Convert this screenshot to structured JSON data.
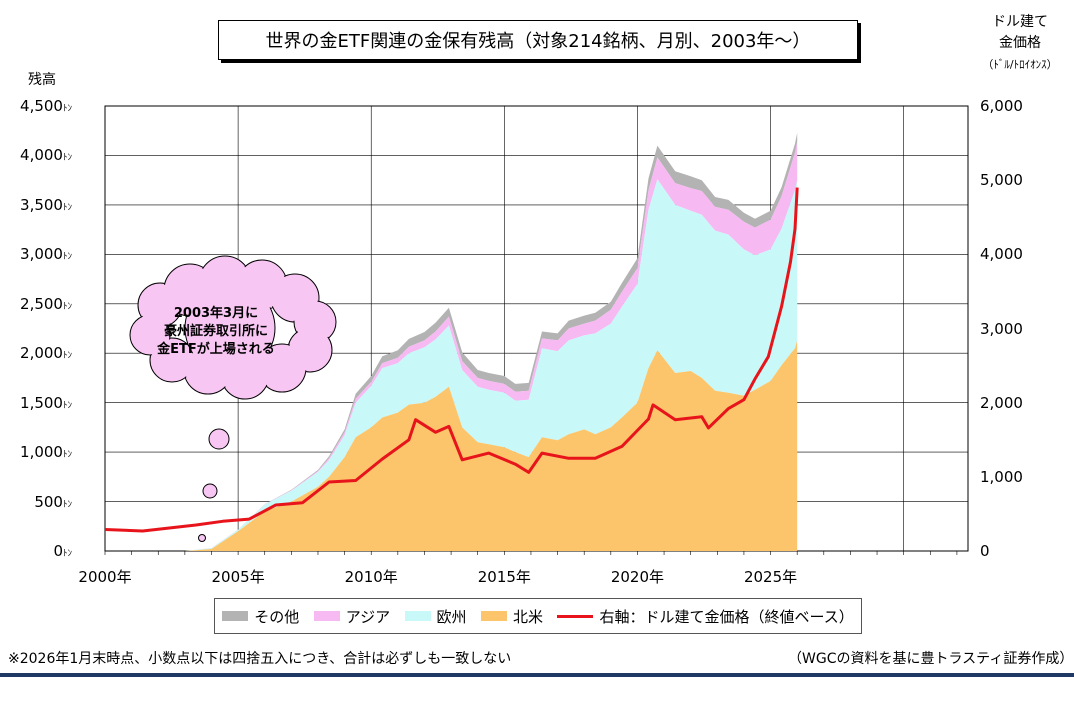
{
  "title": "世界の金ETF関連の金保有残高（対象214銘柄、月別、2003年～）",
  "left_axis": {
    "title": "残高",
    "unit": "ﾄﾝ",
    "ticks": [
      "0",
      "500",
      "1,000",
      "1,500",
      "2,000",
      "2,500",
      "3,000",
      "3,500",
      "4,000",
      "4,500"
    ]
  },
  "right_axis": {
    "title_line1": "ドル建て",
    "title_line2": "金価格",
    "unit": "（ﾄﾞﾙ/ﾄﾛｲｵﾝｽ）",
    "ticks": [
      "0",
      "1,000",
      "2,000",
      "3,000",
      "4,000",
      "5,000",
      "6,000"
    ]
  },
  "x_axis": {
    "ticks": [
      "2000年",
      "2005年",
      "2010年",
      "2015年",
      "2020年",
      "2025年"
    ]
  },
  "callout": {
    "line1": "2003年3月に",
    "line2": "豪州証券取引所に",
    "line3": "金ETFが上場される"
  },
  "legend": {
    "other": "その他",
    "asia": "アジア",
    "europe": "欧州",
    "north_america": "北米",
    "gold_price": "右軸：ドル建て金価格（終値ベース）"
  },
  "footnote": "※2026年1月末時点、小数点以下は四捨五入につき、合計は必ずしも一致しない",
  "source": "（WGCの資料を基に豊トラスティ証券作成）",
  "colors": {
    "other": "#b3b3b3",
    "asia": "#f7b9f2",
    "europe": "#c9f8f8",
    "north_america": "#fcc56b",
    "gold_price": "#e8141b",
    "grid": "#000000"
  },
  "chart_data": {
    "type": "area",
    "stacked": true,
    "x": [
      "2003-01",
      "2004-01",
      "2005-01",
      "2006-01",
      "2007-01",
      "2008-01",
      "2008-06",
      "2009-01",
      "2009-06",
      "2010-01",
      "2010-06",
      "2011-01",
      "2011-06",
      "2012-01",
      "2012-06",
      "2012-12",
      "2013-06",
      "2014-01",
      "2014-06",
      "2015-01",
      "2015-06",
      "2015-12",
      "2016-06",
      "2017-01",
      "2017-06",
      "2018-01",
      "2018-06",
      "2019-01",
      "2019-06",
      "2020-01",
      "2020-06",
      "2020-10",
      "2021-06",
      "2022-01",
      "2022-06",
      "2022-12",
      "2023-06",
      "2024-01",
      "2024-06",
      "2025-01",
      "2025-06",
      "2025-12",
      "2026-01"
    ],
    "series": [
      {
        "name": "北米",
        "values": [
          0,
          20,
          200,
          400,
          500,
          650,
          750,
          950,
          1150,
          1250,
          1350,
          1400,
          1480,
          1500,
          1560,
          1660,
          1250,
          1100,
          1080,
          1050,
          1000,
          950,
          1150,
          1120,
          1180,
          1230,
          1180,
          1250,
          1350,
          1500,
          1850,
          2030,
          1800,
          1820,
          1750,
          1620,
          1600,
          1570,
          1630,
          1720,
          1880,
          2050,
          2130
        ]
      },
      {
        "name": "欧州",
        "values": [
          0,
          8,
          15,
          70,
          110,
          150,
          170,
          220,
          350,
          420,
          500,
          500,
          520,
          560,
          580,
          620,
          580,
          560,
          550,
          550,
          520,
          580,
          900,
          900,
          950,
          950,
          1020,
          1050,
          1120,
          1200,
          1600,
          1730,
          1700,
          1620,
          1650,
          1620,
          1600,
          1480,
          1360,
          1330,
          1380,
          1600,
          1620
        ]
      },
      {
        "name": "アジア",
        "values": [
          0,
          1,
          1,
          2,
          5,
          10,
          20,
          30,
          40,
          40,
          50,
          55,
          65,
          70,
          80,
          90,
          90,
          90,
          90,
          90,
          90,
          90,
          100,
          110,
          120,
          120,
          130,
          140,
          150,
          160,
          200,
          220,
          220,
          230,
          240,
          240,
          250,
          280,
          280,
          300,
          330,
          380,
          390
        ]
      },
      {
        "name": "その他",
        "values": [
          0,
          1,
          1,
          2,
          5,
          10,
          20,
          30,
          50,
          60,
          70,
          75,
          80,
          85,
          90,
          90,
          90,
          80,
          80,
          80,
          80,
          80,
          70,
          70,
          80,
          80,
          80,
          80,
          90,
          100,
          120,
          120,
          120,
          120,
          110,
          100,
          100,
          90,
          90,
          90,
          90,
          90,
          90
        ]
      },
      {
        "name": "右軸：ドル建て金価格（終値ベース）",
        "axis": "right",
        "x": [
          "2000-01",
          "2001-06",
          "2002-06",
          "2003-06",
          "2004-06",
          "2005-06",
          "2006-06",
          "2007-06",
          "2008-06",
          "2009-06",
          "2010-06",
          "2011-06",
          "2011-09",
          "2012-06",
          "2012-12",
          "2013-06",
          "2014-06",
          "2015-06",
          "2015-12",
          "2016-06",
          "2017-06",
          "2018-06",
          "2019-06",
          "2020-06",
          "2020-08",
          "2021-06",
          "2022-06",
          "2022-09",
          "2023-06",
          "2024-01",
          "2024-06",
          "2024-12",
          "2025-06",
          "2025-10",
          "2025-12",
          "2026-01"
        ],
        "values": [
          290,
          270,
          310,
          350,
          400,
          430,
          620,
          650,
          930,
          950,
          1240,
          1500,
          1770,
          1600,
          1680,
          1230,
          1320,
          1170,
          1060,
          1320,
          1250,
          1250,
          1410,
          1780,
          1970,
          1770,
          1810,
          1660,
          1920,
          2040,
          2320,
          2620,
          3300,
          3900,
          4340,
          4900
        ]
      }
    ],
    "xlim": [
      "2000-01",
      "2032-06"
    ],
    "ylim_left": [
      0,
      4500
    ],
    "ylim_right": [
      0,
      6000
    ],
    "grid": true,
    "legend_position": "bottom"
  }
}
